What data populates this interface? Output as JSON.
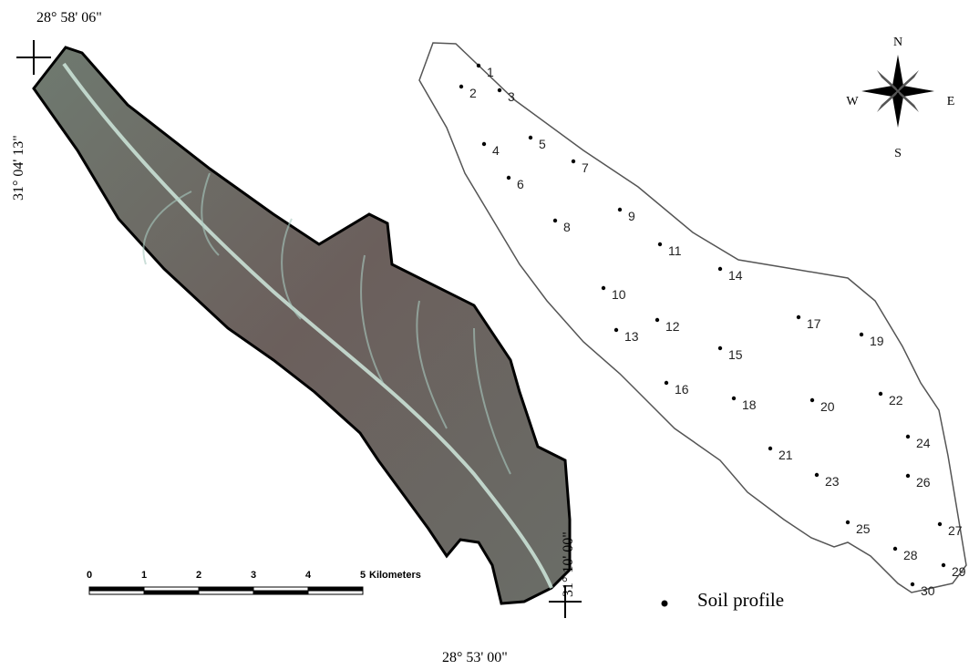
{
  "map": {
    "coordinates": {
      "top": "28° 58' 06\"",
      "left": "31° 04' 13\"",
      "right": "31° 10' 00\"",
      "bottom": "28° 53' 00\""
    },
    "scale_bar": {
      "labels": [
        "0",
        "1",
        "2",
        "3",
        "4",
        "5"
      ],
      "unit": "Kilometers"
    },
    "compass": {
      "north": "N",
      "south": "S",
      "east": "E",
      "west": "W"
    },
    "points": [
      "1",
      "2",
      "3",
      "4",
      "5",
      "6",
      "7",
      "8",
      "9",
      "10",
      "11",
      "12",
      "13",
      "14",
      "15",
      "16",
      "17",
      "18",
      "19",
      "20",
      "21",
      "22",
      "23",
      "24",
      "25",
      "26",
      "27",
      "28",
      "29",
      "30"
    ],
    "legend": "Soil profile"
  }
}
